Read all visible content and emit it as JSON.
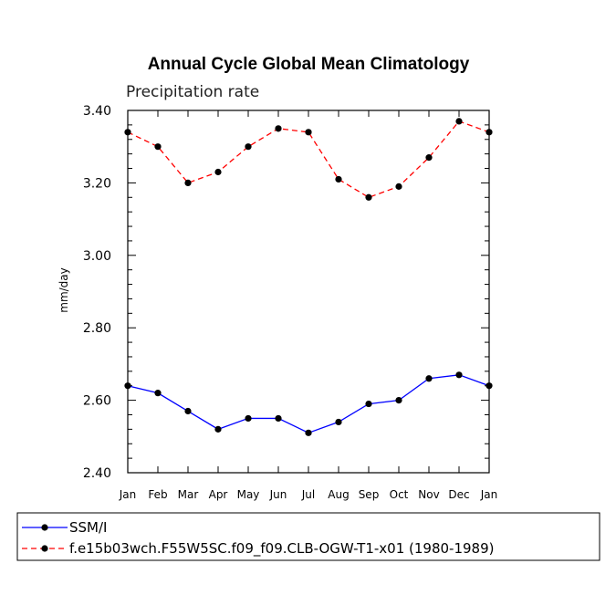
{
  "chart_data": {
    "type": "line",
    "title": "Annual Cycle Global Mean Climatology",
    "subtitle": "Precipitation rate",
    "xlabel": "",
    "ylabel": "mm/day",
    "categories": [
      "Jan",
      "Feb",
      "Mar",
      "Apr",
      "May",
      "Jun",
      "Jul",
      "Aug",
      "Sep",
      "Oct",
      "Nov",
      "Dec",
      "Jan"
    ],
    "ylim": [
      2.4,
      3.4
    ],
    "yticks": [
      "2.40",
      "2.60",
      "2.80",
      "3.00",
      "3.20",
      "3.40"
    ],
    "ytick_values": [
      2.4,
      2.6,
      2.8,
      3.0,
      3.2,
      3.4
    ],
    "series": [
      {
        "name": "SSM/I",
        "color": "#0000ff",
        "dash": "solid",
        "values": [
          2.64,
          2.62,
          2.57,
          2.52,
          2.55,
          2.55,
          2.51,
          2.54,
          2.59,
          2.6,
          2.66,
          2.67,
          2.64
        ]
      },
      {
        "name": "f.e15b03wch.F55W5SC.f09_f09.CLB-OGW-T1-x01 (1980-1989)",
        "color": "#ff0000",
        "dash": "dashed",
        "values": [
          3.34,
          3.3,
          3.2,
          3.23,
          3.3,
          3.35,
          3.34,
          3.21,
          3.16,
          3.19,
          3.27,
          3.37,
          3.34
        ]
      }
    ],
    "grid": false,
    "legend_position": "bottom-left"
  }
}
